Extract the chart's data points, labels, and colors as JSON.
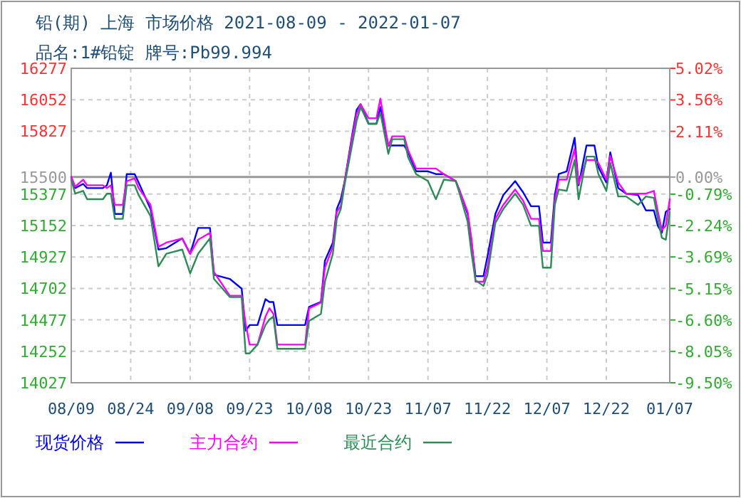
{
  "chart_data": {
    "type": "line",
    "title": "铅(期) 上海 市场价格 2021-08-09 - 2022-01-07",
    "subtitle": "品名:1#铅锭 牌号:Pb99.994",
    "x": [
      "2021-08-09",
      "2021-08-10",
      "2021-08-12",
      "2021-08-13",
      "2021-08-17",
      "2021-08-18",
      "2021-08-19",
      "2021-08-20",
      "2021-08-22",
      "2021-08-23",
      "2021-08-25",
      "2021-08-26",
      "2021-08-29",
      "2021-08-31",
      "2021-09-02",
      "2021-09-06",
      "2021-09-08",
      "2021-09-10",
      "2021-09-13",
      "2021-09-14",
      "2021-09-18",
      "2021-09-21",
      "2021-09-22",
      "2021-09-23",
      "2021-09-25",
      "2021-09-27",
      "2021-09-28",
      "2021-09-29",
      "2021-09-30",
      "2021-10-07",
      "2021-10-08",
      "2021-10-11",
      "2021-10-12",
      "2021-10-14",
      "2021-10-15",
      "2021-10-16",
      "2021-10-17",
      "2021-10-19",
      "2021-10-20",
      "2021-10-21",
      "2021-10-23",
      "2021-10-25",
      "2021-10-26",
      "2021-10-28",
      "2021-10-29",
      "2021-11-01",
      "2021-11-02",
      "2021-11-04",
      "2021-11-07",
      "2021-11-09",
      "2021-11-11",
      "2021-11-14",
      "2021-11-15",
      "2021-11-17",
      "2021-11-18",
      "2021-11-19",
      "2021-11-21",
      "2021-11-22",
      "2021-11-24",
      "2021-11-26",
      "2021-11-29",
      "2021-12-01",
      "2021-12-03",
      "2021-12-05",
      "2021-12-06",
      "2021-12-08",
      "2021-12-09",
      "2021-12-10",
      "2021-12-12",
      "2021-12-14",
      "2021-12-15",
      "2021-12-17",
      "2021-12-19",
      "2021-12-20",
      "2021-12-22",
      "2021-12-23",
      "2021-12-25",
      "2021-12-27",
      "2021-12-30",
      "2022-01-01",
      "2022-01-03",
      "2022-01-04",
      "2022-01-05",
      "2022-01-06",
      "2022-01-07"
    ],
    "series": [
      {
        "name": "现货价格",
        "color": "#0000ff",
        "values": [
          15500,
          15420,
          15450,
          15420,
          15420,
          15440,
          15530,
          15235,
          15235,
          15520,
          15520,
          15460,
          15270,
          14980,
          14990,
          15060,
          14950,
          15135,
          15135,
          14800,
          14770,
          14700,
          14400,
          14440,
          14440,
          14625,
          14605,
          14605,
          14440,
          14440,
          14570,
          14605,
          14900,
          15030,
          15270,
          15340,
          15470,
          15820,
          15980,
          16020,
          15880,
          15880,
          16000,
          15725,
          15725,
          15725,
          15675,
          15540,
          15540,
          15520,
          15520,
          15470,
          15400,
          15235,
          15030,
          14790,
          14790,
          14930,
          15235,
          15370,
          15470,
          15390,
          15290,
          15290,
          15030,
          15030,
          15370,
          15520,
          15540,
          15780,
          15440,
          15725,
          15725,
          15570,
          15460,
          15675,
          15420,
          15380,
          15370,
          15260,
          15260,
          15150,
          15100,
          15250,
          15270
        ]
      },
      {
        "name": "主力合约",
        "color": "#ff00ff",
        "values": [
          15500,
          15430,
          15480,
          15440,
          15440,
          15420,
          15440,
          15300,
          15300,
          15470,
          15490,
          15420,
          15300,
          15000,
          15030,
          15060,
          14950,
          15050,
          15100,
          14820,
          14650,
          14650,
          14450,
          14300,
          14300,
          14500,
          14560,
          14520,
          14300,
          14300,
          14560,
          14600,
          14850,
          15000,
          15250,
          15290,
          15470,
          15800,
          15950,
          16020,
          15920,
          15920,
          16060,
          15720,
          15790,
          15790,
          15690,
          15560,
          15560,
          15560,
          15520,
          15470,
          15400,
          15250,
          15050,
          14750,
          14750,
          14850,
          15200,
          15300,
          15410,
          15330,
          15200,
          15200,
          14970,
          14970,
          15330,
          15480,
          15480,
          15700,
          15450,
          15620,
          15620,
          15600,
          15480,
          15650,
          15460,
          15380,
          15380,
          15380,
          15400,
          15250,
          15120,
          15150,
          15340
        ]
      },
      {
        "name": "最近合约",
        "color": "#2e8b57",
        "values": [
          15480,
          15380,
          15400,
          15340,
          15340,
          15380,
          15380,
          15200,
          15200,
          15440,
          15440,
          15370,
          15220,
          14860,
          14950,
          14980,
          14810,
          14950,
          15060,
          14770,
          14640,
          14640,
          14237,
          14237,
          14300,
          14440,
          14480,
          14500,
          14270,
          14270,
          14470,
          14520,
          14750,
          14950,
          15200,
          15270,
          15450,
          15750,
          15900,
          16000,
          15880,
          15880,
          15960,
          15665,
          15770,
          15770,
          15640,
          15520,
          15470,
          15340,
          15480,
          15470,
          15380,
          15180,
          14950,
          14760,
          14720,
          14800,
          15170,
          15270,
          15380,
          15300,
          15150,
          15150,
          14850,
          14850,
          15300,
          15410,
          15400,
          15620,
          15340,
          15645,
          15645,
          15520,
          15400,
          15600,
          15360,
          15360,
          15300,
          15360,
          15350,
          15200,
          15065,
          15050,
          15250
        ]
      }
    ],
    "xlim": [
      "2021-08-09",
      "2022-01-07"
    ],
    "xticks": [
      {
        "value": "2021-08-09",
        "label": "08/09"
      },
      {
        "value": "2021-08-24",
        "label": "08/24"
      },
      {
        "value": "2021-09-08",
        "label": "09/08"
      },
      {
        "value": "2021-09-23",
        "label": "09/23"
      },
      {
        "value": "2021-10-08",
        "label": "10/08"
      },
      {
        "value": "2021-10-23",
        "label": "10/23"
      },
      {
        "value": "2021-11-07",
        "label": "11/07"
      },
      {
        "value": "2021-11-22",
        "label": "11/22"
      },
      {
        "value": "2021-12-07",
        "label": "12/07"
      },
      {
        "value": "2021-12-22",
        "label": "12/22"
      },
      {
        "value": "2022-01-07",
        "label": "01/07"
      }
    ],
    "ylim": [
      14027,
      16277
    ],
    "yticks": [
      16277,
      16052,
      15827,
      15500,
      15377,
      15152,
      14927,
      14702,
      14477,
      14252,
      14027
    ],
    "y2lim": [
      -9.5,
      5.02
    ],
    "y2ticks": [
      {
        "value": 5.02,
        "label": "5.02%"
      },
      {
        "value": 3.56,
        "label": "3.56%"
      },
      {
        "value": 2.11,
        "label": "2.11%"
      },
      {
        "value": 0,
        "label": "0.00%"
      },
      {
        "value": -0.79,
        "label": "-0.79%"
      },
      {
        "value": -2.24,
        "label": "-2.24%"
      },
      {
        "value": -3.69,
        "label": "-3.69%"
      },
      {
        "value": -5.15,
        "label": "-5.15%"
      },
      {
        "value": -6.6,
        "label": "-6.60%"
      },
      {
        "value": -8.05,
        "label": "-8.05%"
      },
      {
        "value": -9.5,
        "label": "-9.50%"
      }
    ],
    "ref_lines": [
      {
        "axis": "y",
        "value": 15500,
        "color": "#999999"
      }
    ],
    "grid": true,
    "legend": "bottom",
    "marker": "none",
    "line_style": "solid"
  }
}
